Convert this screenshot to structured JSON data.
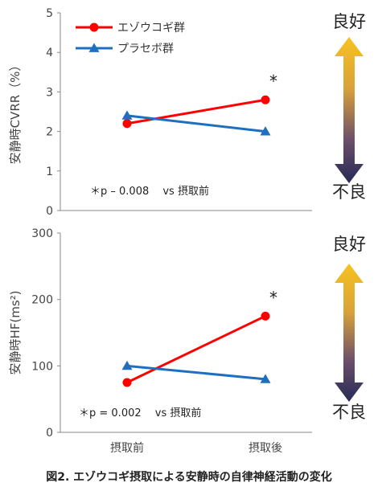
{
  "chart_data": [
    {
      "type": "line",
      "categories": [
        "",
        ""
      ],
      "ylabel": "安静時CVRR（%）",
      "ylim": [
        0,
        5
      ],
      "yticks": [
        0,
        1,
        2,
        3,
        4,
        5
      ],
      "series": [
        {
          "name": "エゾウコギ群",
          "values": [
            2.2,
            2.8
          ],
          "color": "#ff0000",
          "marker": "circle"
        },
        {
          "name": "プラセボ群",
          "values": [
            2.4,
            2.0
          ],
          "color": "#1f6fc1",
          "marker": "triangle"
        }
      ],
      "significance_marker": "*",
      "annotation": "＊p – 0.008　 vs 摂取前",
      "arrow": {
        "top_label": "良好",
        "bottom_label": "不良"
      }
    },
    {
      "type": "line",
      "categories": [
        "摂取前",
        "摂取後"
      ],
      "ylabel": "安静時HF(ms²)",
      "ylim": [
        0,
        300
      ],
      "yticks": [
        0,
        100,
        200,
        300
      ],
      "series": [
        {
          "name": "エゾウコギ群",
          "values": [
            75,
            175
          ],
          "color": "#ff0000",
          "marker": "circle"
        },
        {
          "name": "プラセボ群",
          "values": [
            100,
            80
          ],
          "color": "#1f6fc1",
          "marker": "triangle"
        }
      ],
      "significance_marker": "*",
      "annotation": "＊p = 0.002　 vs 摂取前",
      "arrow": {
        "top_label": "良好",
        "bottom_label": "不良"
      }
    }
  ],
  "caption": "図2. エゾウコギ摂取による安静時の自律神経活動の変化"
}
